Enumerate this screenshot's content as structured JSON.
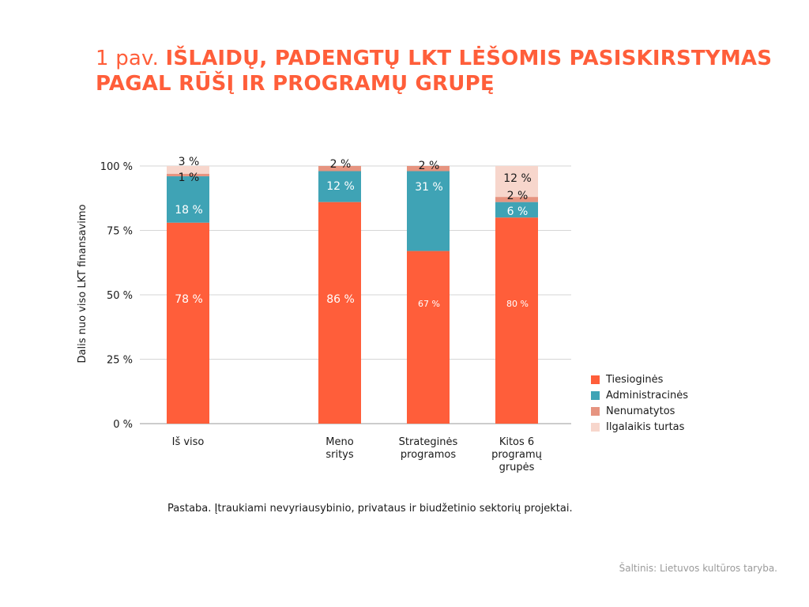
{
  "title": {
    "lead": "1 pav.",
    "main": "IŠLAIDŲ, PADENGTŲ LKT LĖŠOMIS PASISKIRSTYMAS PAGAL RŪŠĮ IR PROGRAMŲ GRUPĘ"
  },
  "note": "Pastaba. Įtraukiami nevyriausybinio, privataus ir biudžetinio sektorių projektai.",
  "source": "Šaltinis: Lietuvos kultūros taryba.",
  "chart_data": {
    "type": "bar",
    "stacked": true,
    "title": "",
    "ylabel": "Dalis nuo viso LKT finansavimo",
    "xlabel": "",
    "ylim": [
      0,
      100
    ],
    "yticks": [
      "0 %",
      "25 %",
      "50 %",
      "75 %",
      "100 %"
    ],
    "grid": true,
    "legend_position": "right",
    "categories": [
      [
        "Iš viso"
      ],
      [
        "Meno",
        "sritys"
      ],
      [
        "Strateginės",
        "programos"
      ],
      [
        "Kitos 6",
        "programų",
        "grupės"
      ]
    ],
    "series": [
      {
        "name": "Tiesioginės",
        "color": "#ff5e3a",
        "values": [
          78,
          86,
          67,
          80
        ],
        "labels": [
          "78 %",
          "86 %",
          "67 %",
          "80 %"
        ]
      },
      {
        "name": "Administracinės",
        "color": "#3fa3b5",
        "values": [
          18,
          12,
          31,
          6
        ],
        "labels": [
          "18 %",
          "12 %",
          "31 %",
          "6 %"
        ]
      },
      {
        "name": "Nenumatytos",
        "color": "#e69480",
        "values": [
          1,
          2,
          2,
          2
        ],
        "labels": [
          "1 %",
          "2 %",
          "2 %",
          "2 %"
        ]
      },
      {
        "name": "Ilgalaikis turtas",
        "color": "#f7d6cc",
        "values": [
          3,
          0,
          0,
          12
        ],
        "labels": [
          "3 %",
          "",
          "",
          "12 %"
        ]
      }
    ]
  }
}
